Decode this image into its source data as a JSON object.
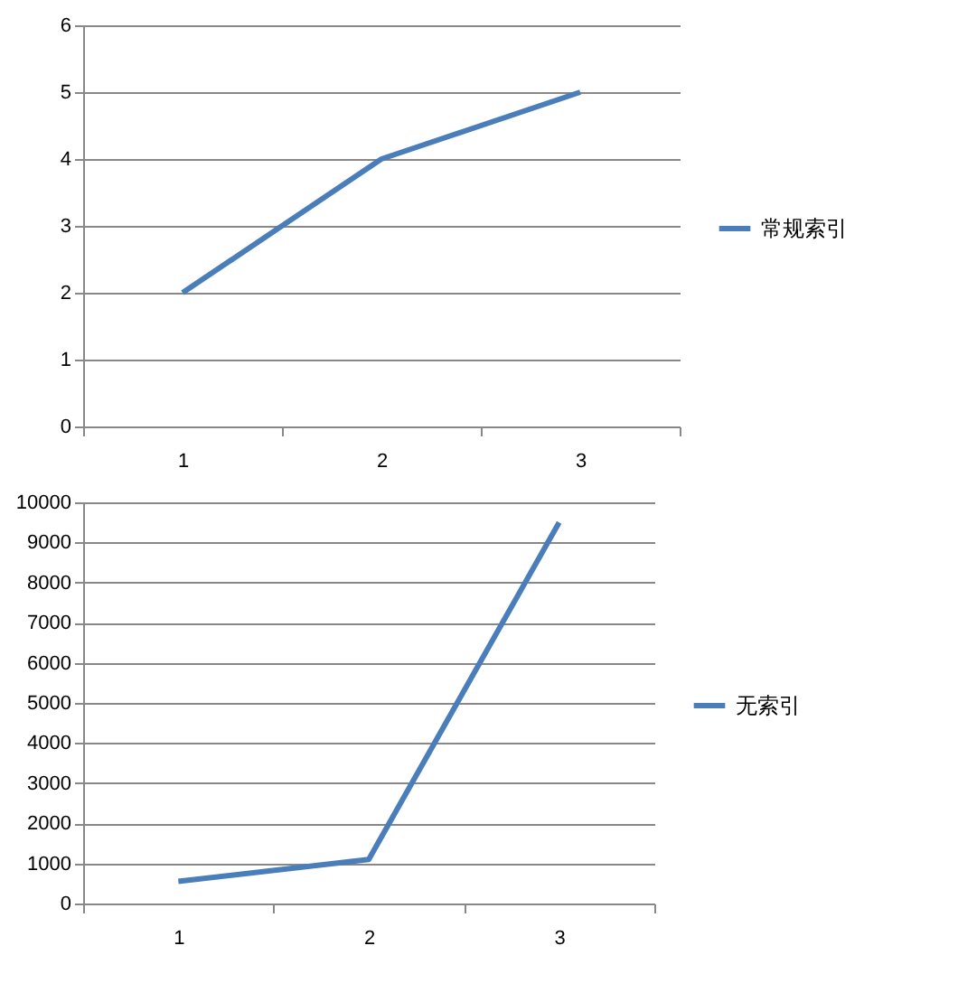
{
  "chart_data": [
    {
      "type": "line",
      "categories": [
        "1",
        "2",
        "3"
      ],
      "series": [
        {
          "name": "常规索引",
          "color": "#4a7ebb",
          "values": [
            2,
            4,
            5
          ]
        }
      ],
      "ylim": [
        0,
        6
      ],
      "yticks": [
        0,
        1,
        2,
        3,
        4,
        5,
        6
      ],
      "grid": "y",
      "legend": "right"
    },
    {
      "type": "line",
      "categories": [
        "1",
        "2",
        "3"
      ],
      "series": [
        {
          "name": "无索引",
          "color": "#4a7ebb",
          "values": [
            550,
            1100,
            9500
          ]
        }
      ],
      "ylim": [
        0,
        10000
      ],
      "yticks": [
        0,
        1000,
        2000,
        3000,
        4000,
        5000,
        6000,
        7000,
        8000,
        9000,
        10000
      ],
      "grid": "y",
      "legend": "right"
    }
  ]
}
